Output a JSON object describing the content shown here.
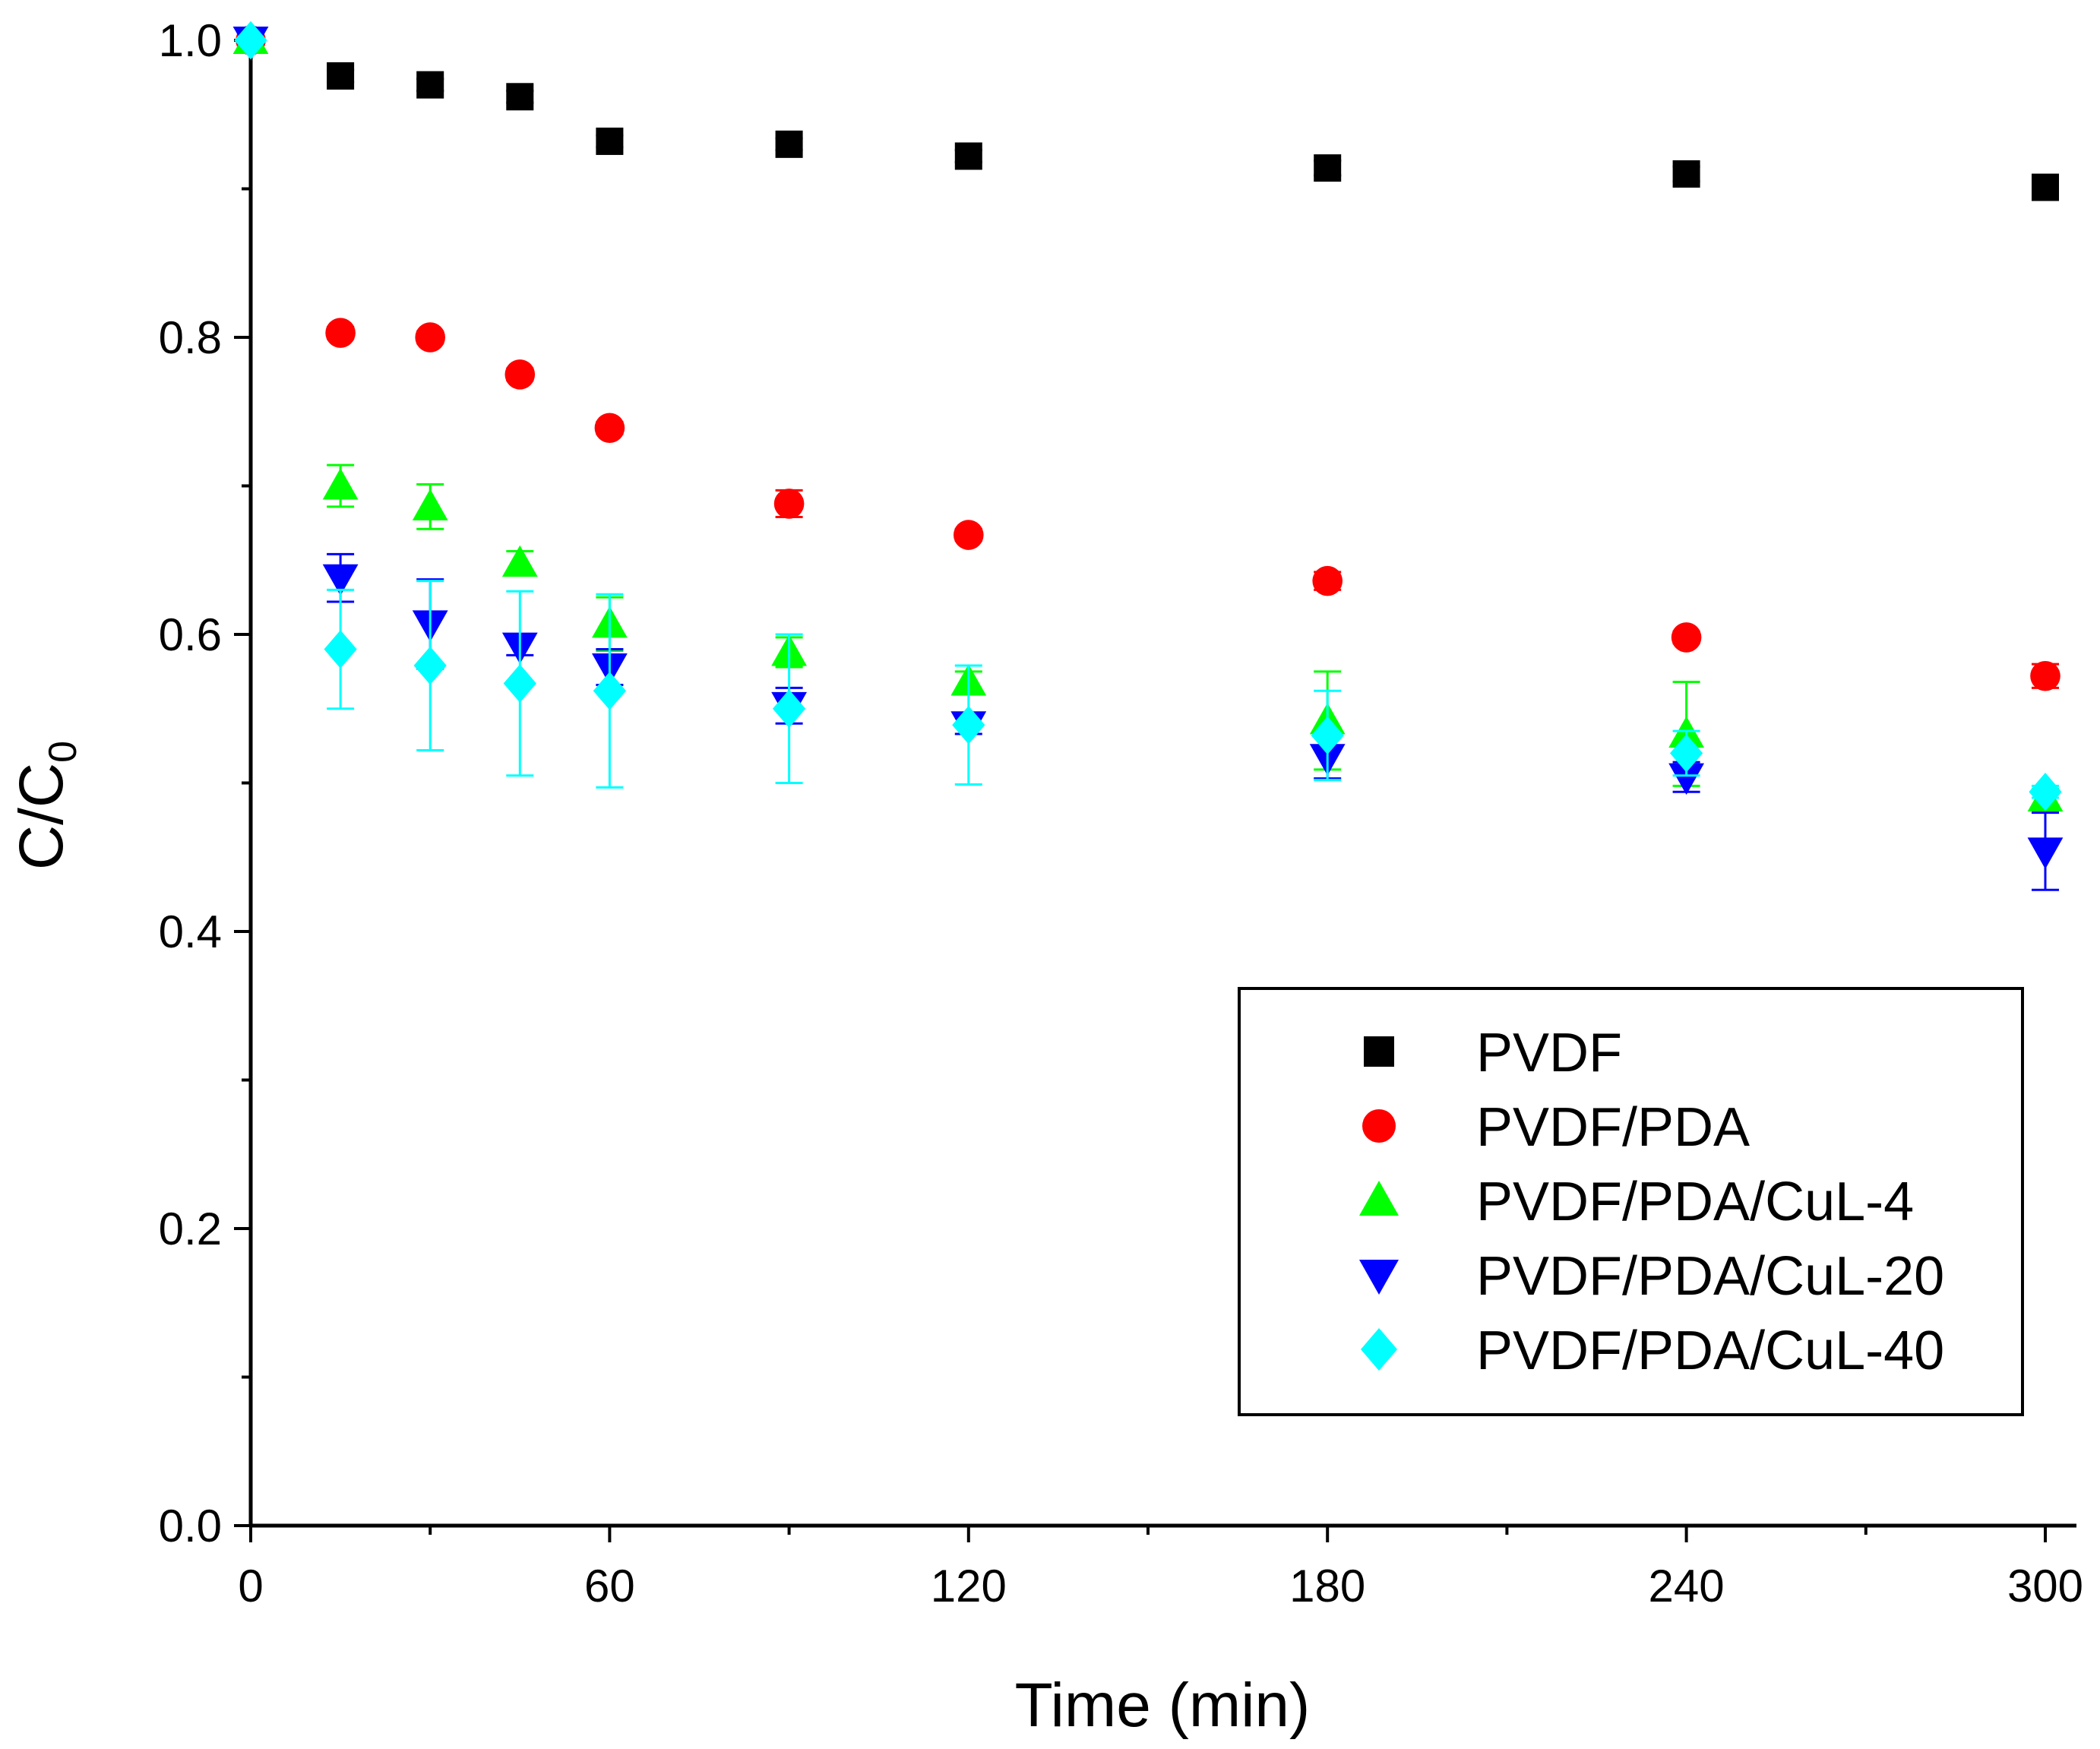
{
  "chart_data": {
    "type": "scatter",
    "title": "",
    "xlabel": "Time (min)",
    "ylabel_main": "C/C",
    "ylabel_sub": "0",
    "xlim": [
      0,
      305
    ],
    "ylim": [
      0,
      1.0
    ],
    "xticks": [
      "0",
      "60",
      "120",
      "180",
      "240",
      "300"
    ],
    "xtick_values": [
      0,
      60,
      120,
      180,
      240,
      300
    ],
    "yticks": [
      "0.0",
      "0.2",
      "0.4",
      "0.6",
      "0.8",
      "1.0"
    ],
    "ytick_values": [
      0,
      0.2,
      0.4,
      0.6,
      0.8,
      1.0
    ],
    "legend_position": "bottom-right",
    "x": [
      0,
      15,
      30,
      45,
      60,
      90,
      120,
      180,
      240,
      300
    ],
    "series": [
      {
        "name": "PVDF",
        "marker": "square",
        "color": "#000000",
        "values": [
          1.0,
          0.976,
          0.97,
          0.962,
          0.932,
          0.93,
          0.922,
          0.914,
          0.91,
          0.901
        ],
        "errors": [
          0,
          0.004,
          0.004,
          0.004,
          0.004,
          0.004,
          0.004,
          0.005,
          0.005,
          0.004
        ]
      },
      {
        "name": "PVDF/PDA",
        "marker": "circle",
        "color": "#ff0000",
        "values": [
          1.0,
          0.803,
          0.8,
          0.775,
          0.739,
          0.688,
          0.667,
          0.636,
          0.598,
          0.572
        ],
        "errors": [
          0,
          0.004,
          0.004,
          0.004,
          0.004,
          0.009,
          0.004,
          0.006,
          0.004,
          0.008
        ]
      },
      {
        "name": "PVDF/PDA/CuL-4",
        "marker": "triangle-up",
        "color": "#00ff00",
        "values": [
          1.0,
          0.7,
          0.686,
          0.648,
          0.607,
          0.588,
          0.568,
          0.542,
          0.533,
          0.49
        ],
        "errors": [
          0,
          0.014,
          0.015,
          0.008,
          0.018,
          0.01,
          0.007,
          0.033,
          0.035,
          0.006
        ]
      },
      {
        "name": "PVDF/PDA/CuL-20",
        "marker": "triangle-down",
        "color": "#0000ff",
        "values": [
          1.0,
          0.638,
          0.607,
          0.592,
          0.578,
          0.552,
          0.539,
          0.517,
          0.504,
          0.454
        ],
        "errors": [
          0,
          0.016,
          0.03,
          0.006,
          0.012,
          0.012,
          0.006,
          0.014,
          0.01,
          0.026
        ]
      },
      {
        "name": "PVDF/PDA/CuL-40",
        "marker": "diamond",
        "color": "#00ffff",
        "values": [
          1.0,
          0.59,
          0.579,
          0.567,
          0.562,
          0.55,
          0.539,
          0.532,
          0.52,
          0.494
        ],
        "errors": [
          0,
          0.04,
          0.057,
          0.062,
          0.065,
          0.05,
          0.04,
          0.03,
          0.015,
          0.004
        ]
      }
    ]
  }
}
